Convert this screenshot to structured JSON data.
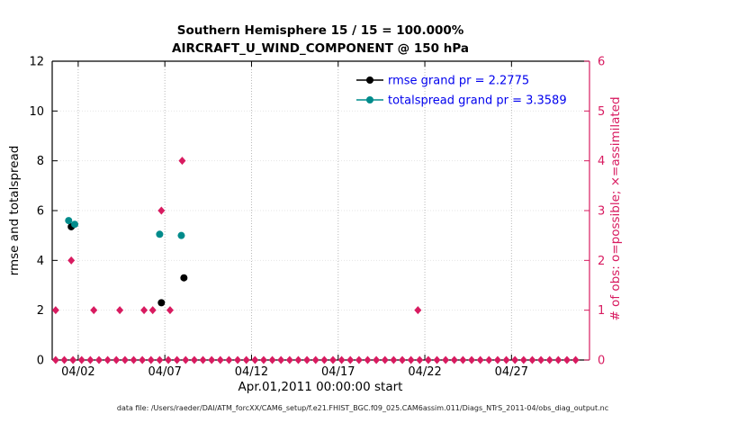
{
  "chart_data": {
    "type": "scatter",
    "title": "Southern Hemisphere 15 / 15 = 100.000%",
    "subtitle": "AIRCRAFT_U_WIND_COMPONENT @ 150 hPa",
    "xlabel": "Apr.01,2011 00:00:00 start",
    "caption": "data file: /Users/raeder/DAI/ATM_forcXX/CAM6_setup/f.e21.FHIST_BGC.f09_025.CAM6assim.011/Diags_NTrS_2011-04/obs_diag_output.nc",
    "grid": true,
    "legend_position": "top-right-inside",
    "legend_text_color": "#0000ee",
    "x_axis": {
      "lim": [
        0.5,
        31.5
      ],
      "ticks": [
        2,
        7,
        12,
        17,
        22,
        27
      ],
      "tick_labels": [
        "04/02",
        "04/07",
        "04/12",
        "04/17",
        "04/22",
        "04/27"
      ]
    },
    "left_axis": {
      "label": "rmse and totalspread",
      "lim": [
        0,
        12
      ],
      "ticks": [
        0,
        2,
        4,
        6,
        8,
        10,
        12
      ],
      "color": "#000000"
    },
    "right_axis": {
      "label": "# of obs: o=possible; ×=assimilated",
      "lim": [
        0,
        6
      ],
      "ticks": [
        0,
        1,
        2,
        3,
        4,
        5,
        6
      ],
      "color": "#d81b60"
    },
    "legend": [
      {
        "label": "rmse grand pr = 2.2775",
        "color": "#000000",
        "marker": "circle"
      },
      {
        "label": "totalspread grand pr = 3.3589",
        "color": "#008b8b",
        "marker": "circle"
      }
    ],
    "series": [
      {
        "name": "rmse",
        "marker": "circle",
        "color": "#000000",
        "axis": "left",
        "points": [
          [
            1.6,
            5.35
          ],
          [
            6.8,
            2.3
          ],
          [
            8.1,
            3.3
          ]
        ]
      },
      {
        "name": "totalspread",
        "marker": "circle",
        "color": "#008b8b",
        "axis": "left",
        "points": [
          [
            1.45,
            5.6
          ],
          [
            1.8,
            5.45
          ],
          [
            6.7,
            5.05
          ],
          [
            7.95,
            5.0
          ]
        ]
      },
      {
        "name": "num-obs",
        "marker": "diamond",
        "color": "#d81b60",
        "axis": "right",
        "points": [
          [
            0.7,
            1
          ],
          [
            1.6,
            2
          ],
          [
            2.9,
            1
          ],
          [
            4.4,
            1
          ],
          [
            5.8,
            1
          ],
          [
            6.3,
            1
          ],
          [
            6.8,
            3
          ],
          [
            7.3,
            1
          ],
          [
            8.0,
            4
          ],
          [
            21.6,
            1
          ],
          [
            0.7,
            0
          ],
          [
            1.2,
            0
          ],
          [
            1.7,
            0
          ],
          [
            2.2,
            0
          ],
          [
            2.7,
            0
          ],
          [
            3.2,
            0
          ],
          [
            3.7,
            0
          ],
          [
            4.2,
            0
          ],
          [
            4.7,
            0
          ],
          [
            5.2,
            0
          ],
          [
            5.7,
            0
          ],
          [
            6.2,
            0
          ],
          [
            6.7,
            0
          ],
          [
            7.2,
            0
          ],
          [
            7.7,
            0
          ],
          [
            8.2,
            0
          ],
          [
            8.7,
            0
          ],
          [
            9.2,
            0
          ],
          [
            9.7,
            0
          ],
          [
            10.2,
            0
          ],
          [
            10.7,
            0
          ],
          [
            11.2,
            0
          ],
          [
            11.7,
            0
          ],
          [
            12.2,
            0
          ],
          [
            12.7,
            0
          ],
          [
            13.2,
            0
          ],
          [
            13.7,
            0
          ],
          [
            14.2,
            0
          ],
          [
            14.7,
            0
          ],
          [
            15.2,
            0
          ],
          [
            15.7,
            0
          ],
          [
            16.2,
            0
          ],
          [
            16.7,
            0
          ],
          [
            17.2,
            0
          ],
          [
            17.7,
            0
          ],
          [
            18.2,
            0
          ],
          [
            18.7,
            0
          ],
          [
            19.2,
            0
          ],
          [
            19.7,
            0
          ],
          [
            20.2,
            0
          ],
          [
            20.7,
            0
          ],
          [
            21.2,
            0
          ],
          [
            21.7,
            0
          ],
          [
            22.2,
            0
          ],
          [
            22.7,
            0
          ],
          [
            23.2,
            0
          ],
          [
            23.7,
            0
          ],
          [
            24.2,
            0
          ],
          [
            24.7,
            0
          ],
          [
            25.2,
            0
          ],
          [
            25.7,
            0
          ],
          [
            26.2,
            0
          ],
          [
            26.7,
            0
          ],
          [
            27.2,
            0
          ],
          [
            27.7,
            0
          ],
          [
            28.2,
            0
          ],
          [
            28.7,
            0
          ],
          [
            29.2,
            0
          ],
          [
            29.7,
            0
          ],
          [
            30.2,
            0
          ],
          [
            30.7,
            0
          ]
        ]
      }
    ]
  }
}
